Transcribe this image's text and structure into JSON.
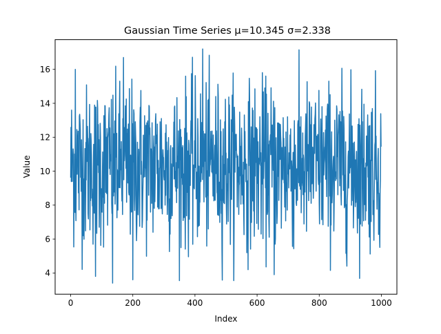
{
  "chart_data": {
    "type": "line",
    "title": "Gaussian Time Series   μ=10.345   σ=2.338",
    "xlabel": "Index",
    "ylabel": "Value",
    "xlim": [
      -50,
      1050
    ],
    "ylim": [
      2.75,
      17.75
    ],
    "xticks": [
      0,
      200,
      400,
      600,
      800,
      1000
    ],
    "xtick_labels": [
      "0",
      "200",
      "400",
      "600",
      "800",
      "1000"
    ],
    "yticks": [
      4,
      6,
      8,
      10,
      12,
      14,
      16
    ],
    "ytick_labels": [
      "4",
      "6",
      "8",
      "10",
      "12",
      "14",
      "16"
    ],
    "grid": false,
    "legend": "none",
    "series": [
      {
        "color": "#1f77b4",
        "n_points": 1000,
        "mean": 10.345,
        "std": 2.338,
        "extremes": [
          {
            "x": 15,
            "y": 16.0
          },
          {
            "x": 80,
            "y": 3.8
          },
          {
            "x": 135,
            "y": 3.4
          },
          {
            "x": 170,
            "y": 16.7
          },
          {
            "x": 200,
            "y": 3.6
          },
          {
            "x": 425,
            "y": 17.2
          },
          {
            "x": 655,
            "y": 3.9
          }
        ]
      }
    ]
  }
}
